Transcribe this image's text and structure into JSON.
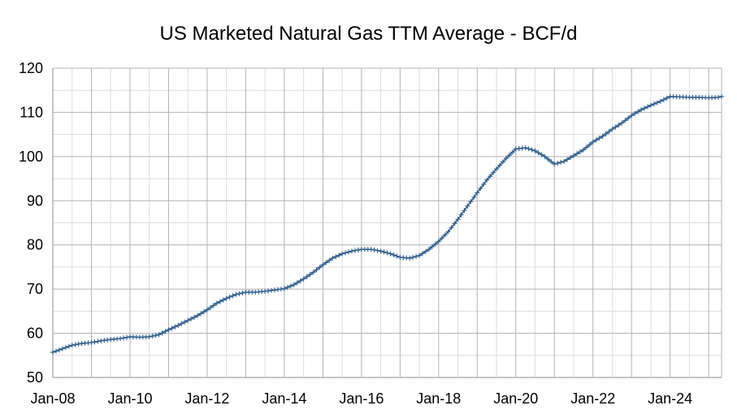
{
  "chart_data": {
    "type": "line",
    "title": "US Marketed Natural Gas TTM Average - BCF/d",
    "xlabel": "",
    "ylabel": "",
    "ylim": [
      50,
      120
    ],
    "yticks": [
      50,
      60,
      70,
      80,
      90,
      100,
      110,
      120
    ],
    "xlim": [
      "2008-01",
      "2025-05"
    ],
    "xticks": [
      "Jan-08",
      "Jan-10",
      "Jan-12",
      "Jan-14",
      "Jan-16",
      "Jan-18",
      "Jan-20",
      "Jan-22",
      "Jan-24"
    ],
    "grid": true,
    "legend": "none",
    "marker": "plus",
    "colors": {
      "series": "#2f5f8f",
      "grid_major": "#b3b3b3",
      "grid_minor": "#dddddd"
    },
    "series": [
      {
        "points": [
          [
            "2008-01",
            55.7
          ],
          [
            "2008-04",
            56.5
          ],
          [
            "2008-07",
            57.3
          ],
          [
            "2008-10",
            57.7
          ],
          [
            "2009-01",
            57.9
          ],
          [
            "2009-04",
            58.3
          ],
          [
            "2009-07",
            58.6
          ],
          [
            "2009-10",
            58.8
          ],
          [
            "2010-01",
            59.2
          ],
          [
            "2010-04",
            59.1
          ],
          [
            "2010-07",
            59.2
          ],
          [
            "2010-10",
            59.7
          ],
          [
            "2011-01",
            60.8
          ],
          [
            "2011-04",
            61.8
          ],
          [
            "2011-07",
            62.9
          ],
          [
            "2011-10",
            64.0
          ],
          [
            "2012-01",
            65.3
          ],
          [
            "2012-04",
            66.8
          ],
          [
            "2012-07",
            67.9
          ],
          [
            "2012-10",
            68.8
          ],
          [
            "2013-01",
            69.3
          ],
          [
            "2013-04",
            69.3
          ],
          [
            "2013-07",
            69.5
          ],
          [
            "2013-10",
            69.8
          ],
          [
            "2014-01",
            70.1
          ],
          [
            "2014-04",
            71.0
          ],
          [
            "2014-07",
            72.3
          ],
          [
            "2014-10",
            73.8
          ],
          [
            "2015-01",
            75.5
          ],
          [
            "2015-04",
            77.0
          ],
          [
            "2015-07",
            78.0
          ],
          [
            "2015-10",
            78.6
          ],
          [
            "2016-01",
            79.0
          ],
          [
            "2016-04",
            79.0
          ],
          [
            "2016-07",
            78.6
          ],
          [
            "2016-10",
            78.0
          ],
          [
            "2017-01",
            77.2
          ],
          [
            "2017-04",
            77.0
          ],
          [
            "2017-07",
            77.6
          ],
          [
            "2017-10",
            79.0
          ],
          [
            "2018-01",
            80.8
          ],
          [
            "2018-04",
            83.0
          ],
          [
            "2018-07",
            85.8
          ],
          [
            "2018-10",
            88.8
          ],
          [
            "2019-01",
            91.8
          ],
          [
            "2019-04",
            94.7
          ],
          [
            "2019-07",
            97.2
          ],
          [
            "2019-10",
            99.6
          ],
          [
            "2020-01",
            101.7
          ],
          [
            "2020-04",
            102.0
          ],
          [
            "2020-07",
            101.3
          ],
          [
            "2020-10",
            100.0
          ],
          [
            "2021-01",
            98.3
          ],
          [
            "2021-04",
            98.9
          ],
          [
            "2021-07",
            100.2
          ],
          [
            "2021-10",
            101.5
          ],
          [
            "2022-01",
            103.3
          ],
          [
            "2022-04",
            104.6
          ],
          [
            "2022-07",
            106.2
          ],
          [
            "2022-10",
            107.6
          ],
          [
            "2023-01",
            109.3
          ],
          [
            "2023-04",
            110.6
          ],
          [
            "2023-07",
            111.6
          ],
          [
            "2023-10",
            112.5
          ],
          [
            "2024-01",
            113.6
          ],
          [
            "2024-04",
            113.5
          ],
          [
            "2024-07",
            113.4
          ],
          [
            "2024-10",
            113.4
          ],
          [
            "2025-01",
            113.3
          ],
          [
            "2025-04",
            113.4
          ],
          [
            "2025-05",
            113.6
          ]
        ]
      }
    ]
  }
}
